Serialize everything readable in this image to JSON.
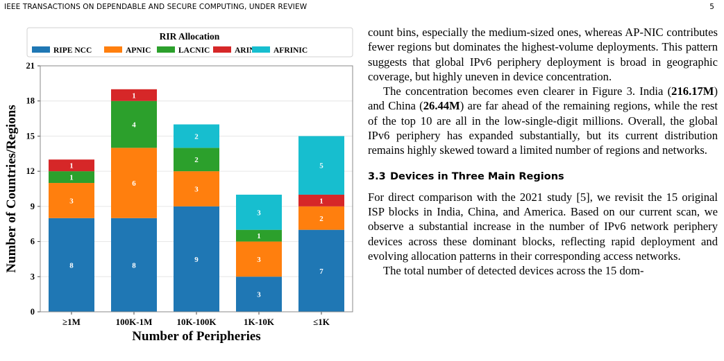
{
  "page": {
    "journal": "IEEE TRANSACTIONS ON DEPENDABLE AND SECURE COMPUTING, UNDER REVIEW",
    "page_number": "5"
  },
  "colors": {
    "RIPE NCC": "#1f77b4",
    "APNIC": "#ff7f0e",
    "LACNIC": "#2ca02c",
    "ARIN": "#d62728",
    "AFRINIC": "#17becf",
    "grid": "#e6e6e6"
  },
  "chart_data": {
    "type": "bar",
    "stacked": true,
    "legend_title": "RIR Allocation",
    "legend_position": "top",
    "categories": [
      "≥1M",
      "100K-1M",
      "10K-100K",
      "1K-10K",
      "≤1K"
    ],
    "series": [
      {
        "name": "RIPE NCC",
        "values": [
          8,
          8,
          9,
          3,
          7
        ]
      },
      {
        "name": "APNIC",
        "values": [
          3,
          6,
          3,
          3,
          2
        ]
      },
      {
        "name": "LACNIC",
        "values": [
          1,
          4,
          2,
          1,
          0
        ]
      },
      {
        "name": "ARIN",
        "values": [
          1,
          1,
          0,
          0,
          1
        ]
      },
      {
        "name": "AFRINIC",
        "values": [
          0,
          0,
          2,
          3,
          5
        ]
      }
    ],
    "xlabel": "Number of Peripheries",
    "ylabel": "Number of Countries/Regions",
    "ylim": [
      0,
      21
    ],
    "yticks": [
      0,
      3,
      6,
      9,
      12,
      15,
      18,
      21
    ],
    "grid": true
  },
  "text": {
    "p1": "count bins, especially the medium-sized ones, whereas AP-NIC contributes fewer regions but dominates the highest-volume deployments. This pattern suggests that global IPv6 periphery deployment is broad in geographic coverage, but highly uneven in device concentration.",
    "p2_a": "The concentration becomes even clearer in Figure 3. India (",
    "p2_india": "216.17M",
    "p2_b": ") and China (",
    "p2_china": "26.44M",
    "p2_c": ") are far ahead of the remaining regions, while the rest of the top 10 are all in the low-single-digit millions. Overall, the global IPv6 periphery has expanded substantially, but its current distribution remains highly skewed toward a limited number of regions and networks.",
    "section_number": "3.3",
    "section_title": "Devices in Three Main Regions",
    "p3": "For direct comparison with the 2021 study [5], we revisit the 15 original ISP blocks in India, China, and America. Based on our current scan, we observe a substantial increase in the number of IPv6 network periphery devices across these dominant blocks, reflecting rapid deployment and evolving allocation patterns in their corresponding access networks.",
    "p4": "The total number of detected devices across the 15 dom-"
  }
}
